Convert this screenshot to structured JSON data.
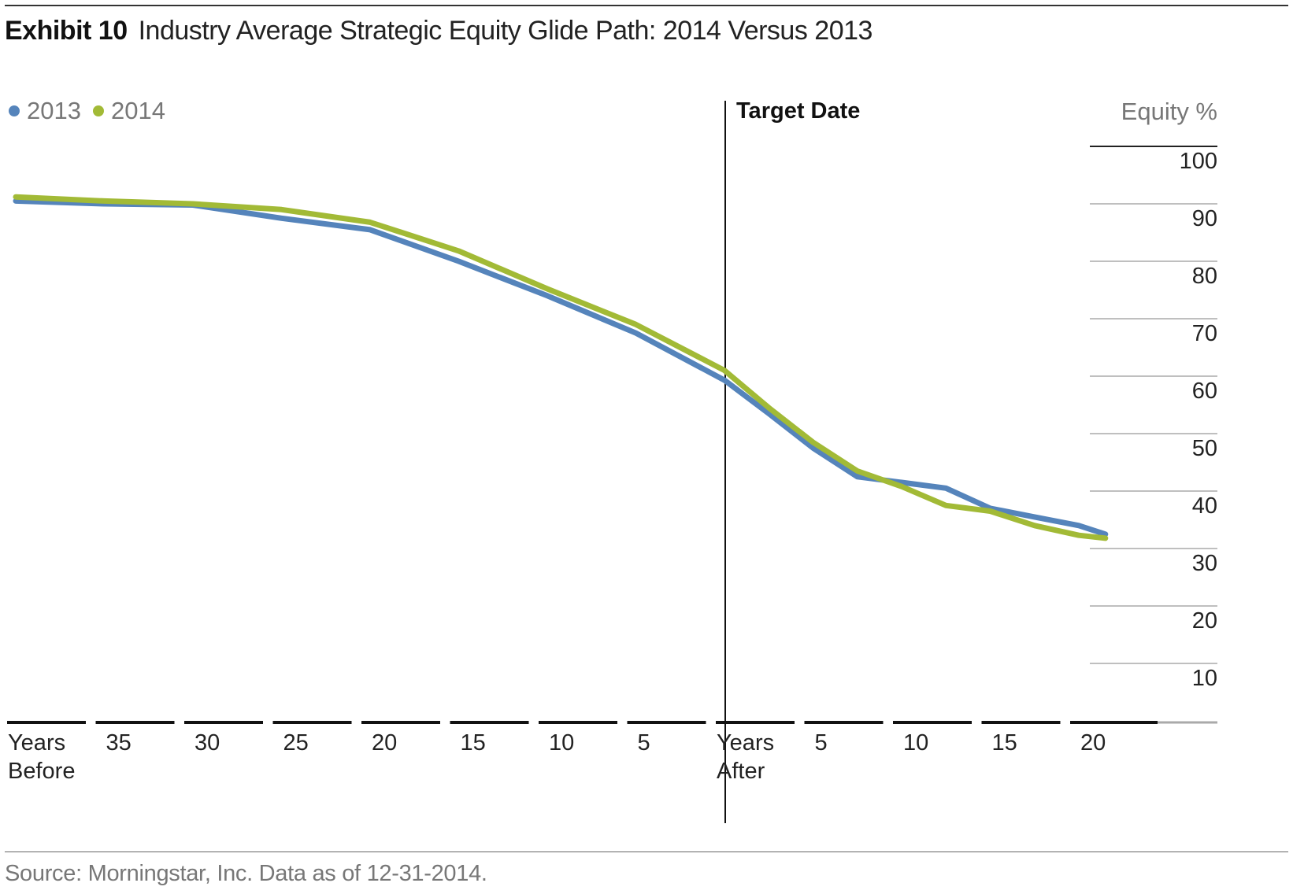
{
  "exhibit": {
    "label": "Exhibit 10",
    "title": "Industry Average Strategic Equity Glide Path: 2014 Versus 2013"
  },
  "source": "Source: Morningstar, Inc. Data as of 12-31-2014.",
  "colors": {
    "series_2013": "#5584bb",
    "series_2014": "#a2ba36",
    "axis": "#111111",
    "grid": "#aaaaaa"
  },
  "chart_data": {
    "type": "line",
    "title": "Industry Average Strategic Equity Glide Path: 2014 Versus 2013",
    "ylabel": "Equity %",
    "ylim": [
      0,
      100
    ],
    "yticks": [
      10,
      20,
      30,
      40,
      50,
      60,
      70,
      80,
      90,
      100
    ],
    "y_axis_position": "right",
    "grid": true,
    "legend": "top-left",
    "xlabel": "",
    "x_unit": "years relative to target date (negative = before, positive = after)",
    "xlim": [
      -40,
      25
    ],
    "reference_line": {
      "x": 0,
      "label": "Target Date"
    },
    "x_tick_labels": [
      {
        "x": -40,
        "lines": [
          "Years",
          "Before"
        ]
      },
      {
        "x": -35,
        "lines": [
          "35"
        ]
      },
      {
        "x": -30,
        "lines": [
          "30"
        ]
      },
      {
        "x": -25,
        "lines": [
          "25"
        ]
      },
      {
        "x": -20,
        "lines": [
          "20"
        ]
      },
      {
        "x": -15,
        "lines": [
          "15"
        ]
      },
      {
        "x": -10,
        "lines": [
          "10"
        ]
      },
      {
        "x": -5,
        "lines": [
          "5"
        ]
      },
      {
        "x": 0,
        "lines": [
          "Years",
          "After"
        ]
      },
      {
        "x": 5,
        "lines": [
          "5"
        ]
      },
      {
        "x": 10,
        "lines": [
          "10"
        ]
      },
      {
        "x": 15,
        "lines": [
          "15"
        ]
      },
      {
        "x": 20,
        "lines": [
          "20"
        ]
      }
    ],
    "series": [
      {
        "name": "2013",
        "x": [
          -40,
          -35,
          -30,
          -25,
          -20,
          -15,
          -10,
          -5,
          0,
          2.5,
          5,
          7.5,
          10,
          12.5,
          15,
          17.5,
          20,
          21.5
        ],
        "values": [
          90.5,
          90.0,
          89.8,
          87.5,
          85.5,
          80.0,
          74.0,
          67.5,
          59.3,
          53.5,
          47.5,
          42.5,
          41.5,
          40.5,
          37.0,
          35.5,
          34.0,
          32.5
        ]
      },
      {
        "name": "2014",
        "x": [
          -40,
          -35,
          -30,
          -25,
          -20,
          -15,
          -10,
          -5,
          0,
          2.5,
          5,
          7.5,
          10,
          12.5,
          15,
          17.5,
          20,
          21.5
        ],
        "values": [
          91.2,
          90.5,
          90.0,
          89.0,
          86.8,
          81.8,
          75.2,
          69.0,
          61.0,
          54.5,
          48.5,
          43.5,
          40.8,
          37.5,
          36.5,
          34.0,
          32.3,
          31.8
        ]
      }
    ]
  }
}
